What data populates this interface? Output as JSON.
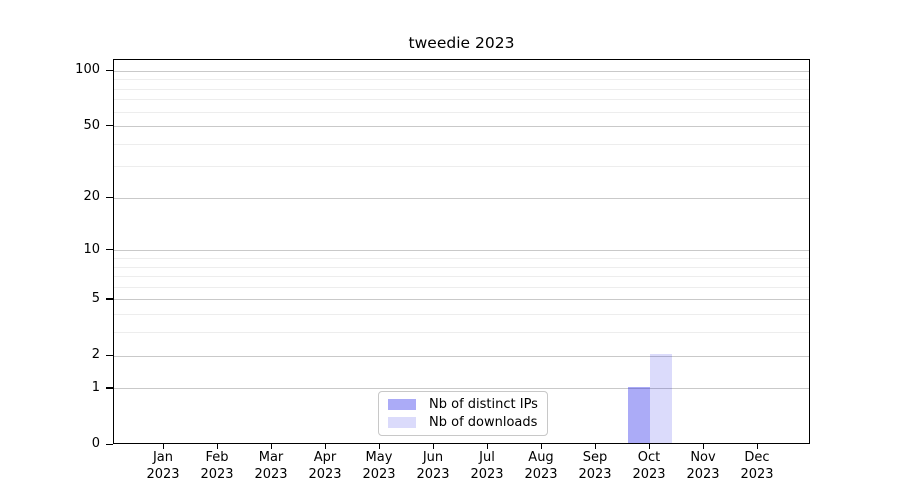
{
  "chart_data": {
    "type": "bar",
    "title": "tweedie 2023",
    "categories": [
      "Jan",
      "Feb",
      "Mar",
      "Apr",
      "May",
      "Jun",
      "Jul",
      "Aug",
      "Sep",
      "Oct",
      "Nov",
      "Dec"
    ],
    "year_label": "2023",
    "series": [
      {
        "name": "Nb of distinct IPs",
        "color": "rgba(0,0,230,0.33)",
        "color_hex_on_white": "#aaaaf8",
        "values": [
          0,
          0,
          0,
          0,
          0,
          0,
          0,
          0,
          0,
          1,
          0,
          0
        ]
      },
      {
        "name": "Nb of downloads",
        "color": "rgba(0,0,230,0.14)",
        "color_hex_on_white": "#dcdcfa",
        "values": [
          0,
          0,
          0,
          0,
          0,
          0,
          0,
          0,
          0,
          2,
          0,
          0
        ]
      }
    ],
    "y_ticks": [
      0,
      1,
      2,
      5,
      10,
      20,
      50,
      100
    ],
    "y_minor_gridlines": [
      3,
      4,
      6,
      7,
      8,
      9,
      30,
      40,
      60,
      70,
      80,
      90
    ],
    "y_scale": "log10(1+v)",
    "ylim": [
      0,
      115
    ],
    "xlabel": "",
    "ylabel": "",
    "grid": "on",
    "legend_position": "lower center",
    "colors": {
      "grid_major": "#c9c9c9",
      "grid_minor": "#ededed",
      "spine": "#000000",
      "text": "#000000"
    }
  }
}
